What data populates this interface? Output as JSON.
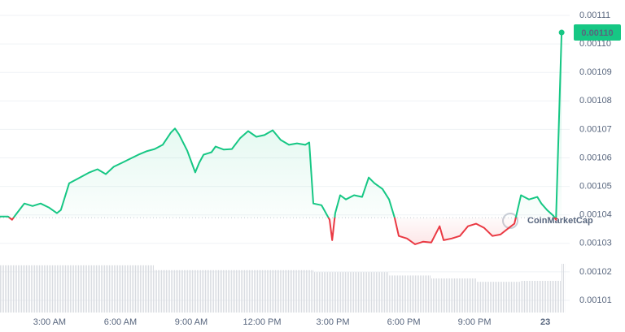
{
  "chart_data": {
    "type": "line",
    "x": [
      0.9,
      1.24,
      1.41,
      1.59,
      1.93,
      2.28,
      2.62,
      2.97,
      3.31,
      3.48,
      3.83,
      4.17,
      4.69,
      5.03,
      5.38,
      5.72,
      6.07,
      6.41,
      6.76,
      7.1,
      7.45,
      7.79,
      8.14,
      8.31,
      8.48,
      8.83,
      9.17,
      9.34,
      9.52,
      9.86,
      10.03,
      10.38,
      10.72,
      11.07,
      11.41,
      11.76,
      12.1,
      12.45,
      12.79,
      13.14,
      13.48,
      13.83,
      14.0,
      14.17,
      14.52,
      14.86,
      14.97,
      15.1,
      15.31,
      15.55,
      15.9,
      16.24,
      16.52,
      16.76,
      17.1,
      17.38,
      17.62,
      17.79,
      18.14,
      18.48,
      18.83,
      19.17,
      19.52,
      19.69,
      20.03,
      20.38,
      20.72,
      21.07,
      21.41,
      21.76,
      22.1,
      22.45,
      22.69,
      22.97,
      23.31,
      23.66,
      23.83,
      24.07,
      24.34,
      24.45,
      24.69
    ],
    "values": [
      0.0010394,
      0.0010394,
      0.0010383,
      0.0010403,
      0.001044,
      0.0010431,
      0.001044,
      0.0010426,
      0.0010406,
      0.0010417,
      0.0010511,
      0.0010526,
      0.0010549,
      0.001056,
      0.0010543,
      0.0010569,
      0.0010583,
      0.0010597,
      0.0010611,
      0.0010623,
      0.0010631,
      0.0010646,
      0.0010689,
      0.0010703,
      0.0010683,
      0.0010626,
      0.0010549,
      0.0010583,
      0.0010611,
      0.001062,
      0.001064,
      0.0010629,
      0.0010631,
      0.0010669,
      0.0010694,
      0.0010674,
      0.001068,
      0.0010697,
      0.0010663,
      0.0010646,
      0.0010651,
      0.0010646,
      0.0010654,
      0.001044,
      0.0010434,
      0.0010383,
      0.0010311,
      0.0010406,
      0.0010469,
      0.0010454,
      0.0010469,
      0.0010463,
      0.0010531,
      0.0010511,
      0.0010491,
      0.0010454,
      0.0010389,
      0.0010326,
      0.0010317,
      0.0010297,
      0.0010306,
      0.0010303,
      0.001036,
      0.0010311,
      0.0010317,
      0.0010326,
      0.001036,
      0.0010369,
      0.0010354,
      0.0010326,
      0.0010331,
      0.0010354,
      0.0010369,
      0.0010469,
      0.0010454,
      0.0010463,
      0.001044,
      0.0010417,
      0.0010397,
      0.0010383,
      0.001104
    ],
    "volume": [
      97,
      97,
      97,
      97,
      97,
      97,
      97,
      97,
      97,
      97,
      97,
      97,
      97,
      97,
      97,
      97,
      97,
      97,
      97,
      97,
      87,
      87,
      87,
      87,
      87,
      87,
      87,
      87,
      87,
      87,
      87,
      87,
      87,
      87,
      87,
      87,
      87,
      87,
      87,
      87,
      87,
      87,
      87,
      83,
      83,
      83,
      83,
      83,
      83,
      83,
      83,
      83,
      83,
      83,
      83,
      76,
      76,
      76,
      76,
      76,
      76,
      70,
      70,
      70,
      70,
      70,
      70,
      63,
      63,
      63,
      63,
      63,
      63,
      65,
      65,
      65,
      65,
      65,
      65,
      65,
      100
    ],
    "volume_lim": [
      0,
      100
    ],
    "reference": 0.001039,
    "up_color": "#16c784",
    "down_color": "#ea3943",
    "current_price": {
      "value": 0.001104,
      "label": "0.00110"
    },
    "watermark": "CoinMarketCap",
    "xlim": [
      0.9,
      25.03
    ],
    "xticks": [
      {
        "value": 3,
        "label": "3:00 AM"
      },
      {
        "value": 6,
        "label": "6:00 AM"
      },
      {
        "value": 9,
        "label": "9:00 AM"
      },
      {
        "value": 12,
        "label": "12:00 PM"
      },
      {
        "value": 15,
        "label": "3:00 PM"
      },
      {
        "value": 18,
        "label": "6:00 PM"
      },
      {
        "value": 21,
        "label": "9:00 PM"
      },
      {
        "value": 24,
        "label": "23"
      }
    ],
    "ylim": [
      0.00101,
      0.00111
    ],
    "yticks": [
      0.00101,
      0.00102,
      0.00103,
      0.00104,
      0.00105,
      0.00106,
      0.00107,
      0.00108,
      0.00109,
      {
        "value": 0.0011,
        "label": "0.00110"
      },
      0.00111
    ],
    "grid": true
  }
}
